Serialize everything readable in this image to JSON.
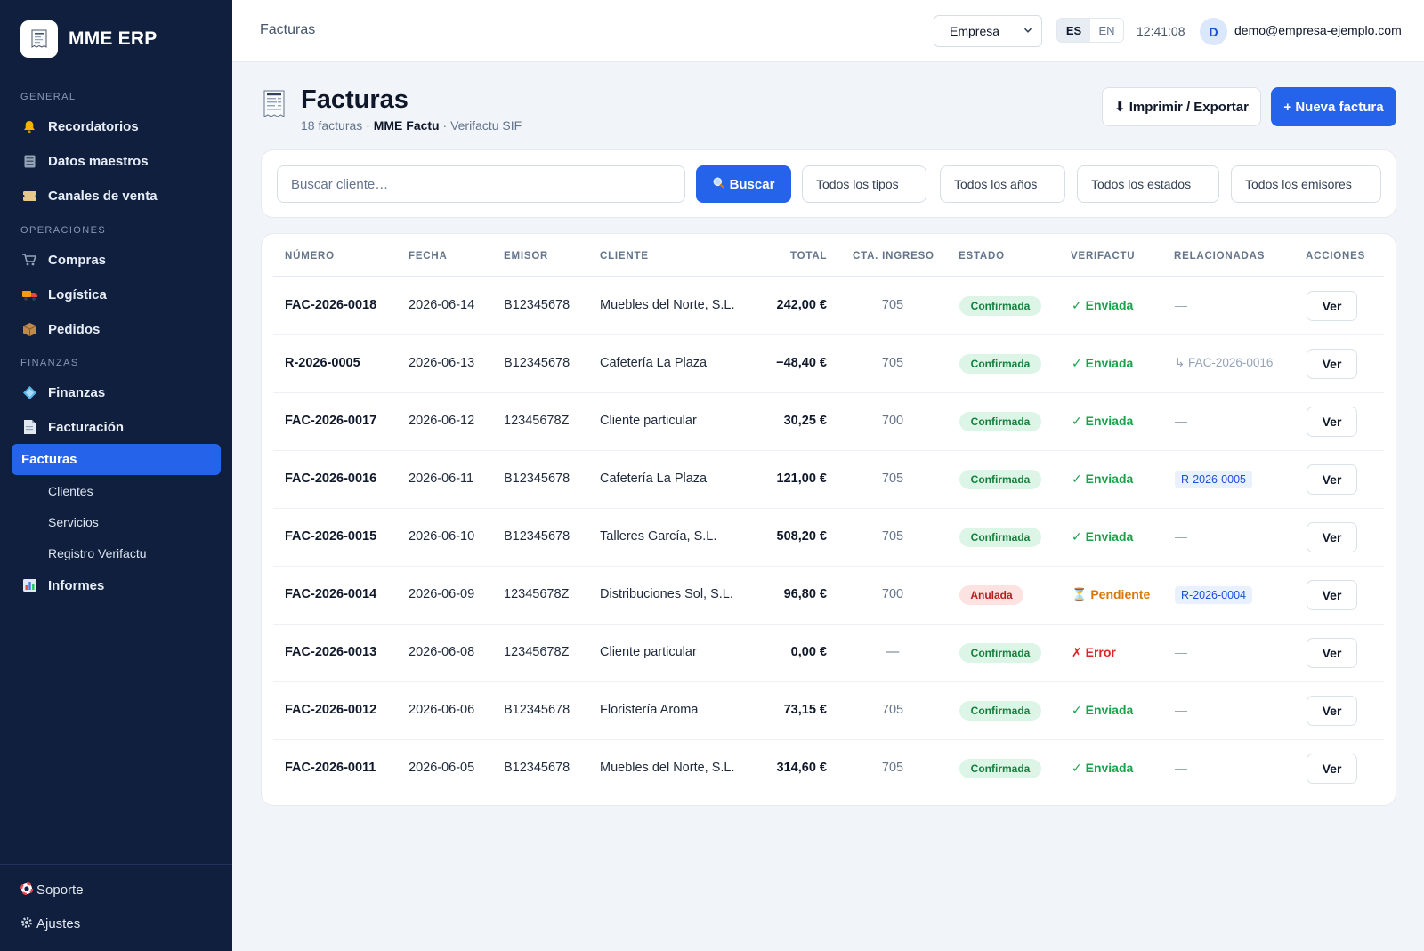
{
  "app": {
    "name": "MME ERP"
  },
  "sidebar": {
    "sections": [
      "GENERAL",
      "OPERACIONES",
      "FINANZAS"
    ],
    "items": [
      {
        "label": "Recordatorios",
        "icon": "bell-icon"
      },
      {
        "label": "Datos maestros",
        "icon": "database-icon"
      },
      {
        "label": "Canales de venta",
        "icon": "ticket-icon"
      },
      {
        "label": "Compras",
        "icon": "cart-icon"
      },
      {
        "label": "Logística",
        "icon": "truck-icon"
      },
      {
        "label": "Pedidos",
        "icon": "package-icon"
      },
      {
        "label": "Finanzas",
        "icon": "diamond-icon"
      },
      {
        "label": "Facturación",
        "icon": "document-icon"
      }
    ],
    "active": "Facturas",
    "subitems": [
      "Clientes",
      "Servicios",
      "Registro Verifactu"
    ],
    "reports": {
      "label": "Informes",
      "icon": "bar-chart-icon"
    },
    "footer": [
      {
        "label": "Soporte",
        "icon": "lifebuoy-icon"
      },
      {
        "label": "Ajustes",
        "icon": "gear-icon"
      }
    ]
  },
  "topbar": {
    "title": "Facturas",
    "company": "Empresa",
    "lang_active": "ES",
    "lang_other": "EN",
    "time": "12:41:08",
    "avatar_initial": "D",
    "email": "demo@empresa-ejemplo.com"
  },
  "header": {
    "title": "Facturas",
    "count_text": "18 facturas",
    "sep1": "·",
    "issuer": "MME Factu",
    "sep2": "·",
    "system": "Verifactu SIF",
    "export_label": "⬇ Imprimir / Exportar",
    "new_label": "+ Nueva factura"
  },
  "filters": {
    "search_placeholder": "Buscar cliente…",
    "search_button": "Buscar",
    "type": "Todos los tipos",
    "year": "Todos los años",
    "status": "Todos los estados",
    "issuer": "Todos los emisores"
  },
  "table": {
    "columns": [
      "NÚMERO",
      "FECHA",
      "EMISOR",
      "CLIENTE",
      "TOTAL",
      "CTA. INGRESO",
      "ESTADO",
      "VERIFACTU",
      "RELACIONADAS",
      "ACCIONES"
    ],
    "action_label": "Ver",
    "rows": [
      {
        "numero": "FAC-2026-0018",
        "fecha": "2026-06-14",
        "emisor": "B12345678",
        "cliente": "Muebles del Norte, S.L.",
        "total": "242,00 €",
        "cta": "705",
        "estado": "Confirmada",
        "estado_kind": "ok",
        "verifactu": "✓ Enviada",
        "vf_kind": "ok",
        "rel": "—",
        "rel_kind": "none"
      },
      {
        "numero": "R-2026-0005",
        "fecha": "2026-06-13",
        "emisor": "B12345678",
        "cliente": "Cafetería La Plaza",
        "total": "−48,40 €",
        "cta": "705",
        "estado": "Confirmada",
        "estado_kind": "ok",
        "verifactu": "✓ Enviada",
        "vf_kind": "ok",
        "rel": "↳ FAC-2026-0016",
        "rel_kind": "link"
      },
      {
        "numero": "FAC-2026-0017",
        "fecha": "2026-06-12",
        "emisor": "12345678Z",
        "cliente": "Cliente particular",
        "total": "30,25 €",
        "cta": "700",
        "estado": "Confirmada",
        "estado_kind": "ok",
        "verifactu": "✓ Enviada",
        "vf_kind": "ok",
        "rel": "—",
        "rel_kind": "none"
      },
      {
        "numero": "FAC-2026-0016",
        "fecha": "2026-06-11",
        "emisor": "B12345678",
        "cliente": "Cafetería La Plaza",
        "total": "121,00 €",
        "cta": "705",
        "estado": "Confirmada",
        "estado_kind": "ok",
        "verifactu": "✓ Enviada",
        "vf_kind": "ok",
        "rel": "R-2026-0005",
        "rel_kind": "chip"
      },
      {
        "numero": "FAC-2026-0015",
        "fecha": "2026-06-10",
        "emisor": "B12345678",
        "cliente": "Talleres García, S.L.",
        "total": "508,20 €",
        "cta": "705",
        "estado": "Confirmada",
        "estado_kind": "ok",
        "verifactu": "✓ Enviada",
        "vf_kind": "ok",
        "rel": "—",
        "rel_kind": "none"
      },
      {
        "numero": "FAC-2026-0014",
        "fecha": "2026-06-09",
        "emisor": "12345678Z",
        "cliente": "Distribuciones Sol, S.L.",
        "total": "96,80 €",
        "cta": "700",
        "estado": "Anulada",
        "estado_kind": "bad",
        "verifactu": "⏳ Pendiente",
        "vf_kind": "pend",
        "rel": "R-2026-0004",
        "rel_kind": "chip"
      },
      {
        "numero": "FAC-2026-0013",
        "fecha": "2026-06-08",
        "emisor": "12345678Z",
        "cliente": "Cliente particular",
        "total": "0,00 €",
        "cta": "—",
        "estado": "Confirmada",
        "estado_kind": "ok",
        "verifactu": "✗ Error",
        "vf_kind": "err",
        "rel": "—",
        "rel_kind": "none"
      },
      {
        "numero": "FAC-2026-0012",
        "fecha": "2026-06-06",
        "emisor": "B12345678",
        "cliente": "Floristería Aroma",
        "total": "73,15 €",
        "cta": "705",
        "estado": "Confirmada",
        "estado_kind": "ok",
        "verifactu": "✓ Enviada",
        "vf_kind": "ok",
        "rel": "—",
        "rel_kind": "none"
      },
      {
        "numero": "FAC-2026-0011",
        "fecha": "2026-06-05",
        "emisor": "B12345678",
        "cliente": "Muebles del Norte, S.L.",
        "total": "314,60 €",
        "cta": "705",
        "estado": "Confirmada",
        "estado_kind": "ok",
        "verifactu": "✓ Enviada",
        "vf_kind": "ok",
        "rel": "—",
        "rel_kind": "none"
      }
    ]
  },
  "colors": {
    "sidebar_bg": "#0f1f3d",
    "accent": "#2563eb",
    "success": "#16a34a",
    "warning": "#d97706",
    "danger": "#dc2626"
  }
}
